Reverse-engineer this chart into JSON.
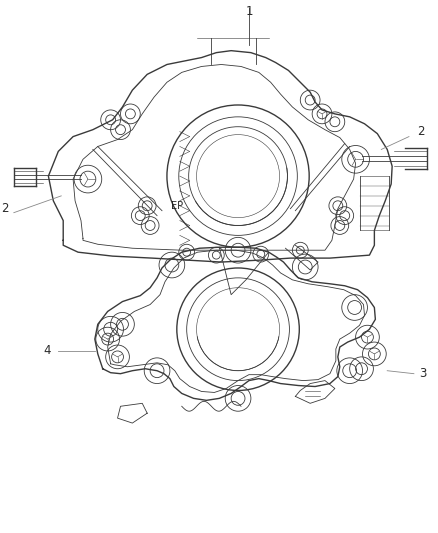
{
  "background_color": "#ffffff",
  "fig_width": 4.38,
  "fig_height": 5.33,
  "dpi": 100,
  "line_color": "#3a3a3a",
  "light_color": "#888888",
  "text_color": "#2a2a2a",
  "callout_fs": 8.5
}
